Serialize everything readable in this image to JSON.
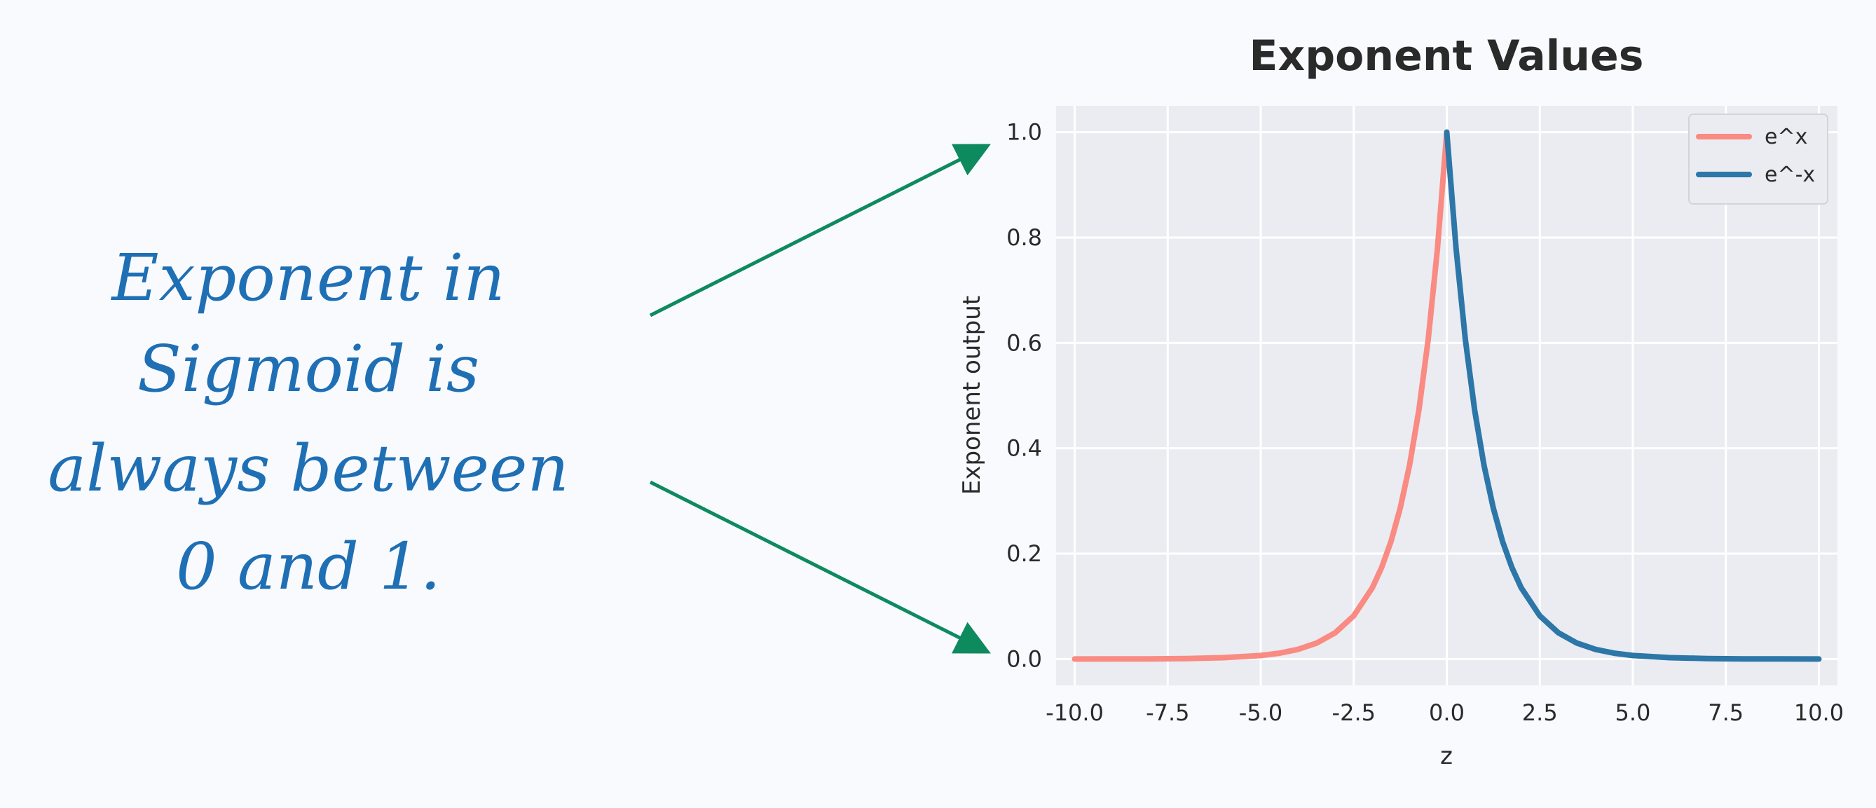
{
  "annotation": {
    "lines": [
      "Exponent in",
      "Sigmoid is",
      "always between",
      "0 and 1."
    ],
    "color": "#1f6fb5",
    "arrow_color": "#0e8a5f"
  },
  "chart_data": {
    "type": "line",
    "title": "Exponent Values",
    "xlabel": "z",
    "ylabel": "Exponent output",
    "xlim": [
      -10.5,
      10.5
    ],
    "ylim": [
      -0.05,
      1.05
    ],
    "xticks": [
      -10.0,
      -7.5,
      -5.0,
      -2.5,
      0.0,
      2.5,
      5.0,
      7.5,
      10.0
    ],
    "xtick_labels": [
      "-10.0",
      "-7.5",
      "-5.0",
      "-2.5",
      "0.0",
      "2.5",
      "5.0",
      "7.5",
      "10.0"
    ],
    "yticks": [
      0.0,
      0.2,
      0.4,
      0.6,
      0.8,
      1.0
    ],
    "ytick_labels": [
      "0.0",
      "0.2",
      "0.4",
      "0.6",
      "0.8",
      "1.0"
    ],
    "grid": true,
    "legend_position": "top-right",
    "series": [
      {
        "name": "e^x",
        "color": "#f98b82",
        "x": [
          -10.0,
          -9.0,
          -8.0,
          -7.0,
          -6.0,
          -5.0,
          -4.5,
          -4.0,
          -3.5,
          -3.0,
          -2.5,
          -2.0,
          -1.75,
          -1.5,
          -1.25,
          -1.0,
          -0.75,
          -0.5,
          -0.25,
          0.0
        ],
        "y": [
          5e-05,
          0.0001,
          0.0003,
          0.0009,
          0.0025,
          0.0067,
          0.0111,
          0.0183,
          0.0302,
          0.0498,
          0.0821,
          0.1353,
          0.1738,
          0.2231,
          0.2865,
          0.3679,
          0.4724,
          0.6065,
          0.7788,
          1.0
        ]
      },
      {
        "name": "e^-x",
        "color": "#2c77a8",
        "x": [
          0.0,
          0.25,
          0.5,
          0.75,
          1.0,
          1.25,
          1.5,
          1.75,
          2.0,
          2.5,
          3.0,
          3.5,
          4.0,
          4.5,
          5.0,
          6.0,
          7.0,
          8.0,
          9.0,
          10.0
        ],
        "y": [
          1.0,
          0.7788,
          0.6065,
          0.4724,
          0.3679,
          0.2865,
          0.2231,
          0.1738,
          0.1353,
          0.0821,
          0.0498,
          0.0302,
          0.0183,
          0.0111,
          0.0067,
          0.0025,
          0.0009,
          0.0003,
          0.0001,
          5e-05
        ]
      }
    ]
  }
}
